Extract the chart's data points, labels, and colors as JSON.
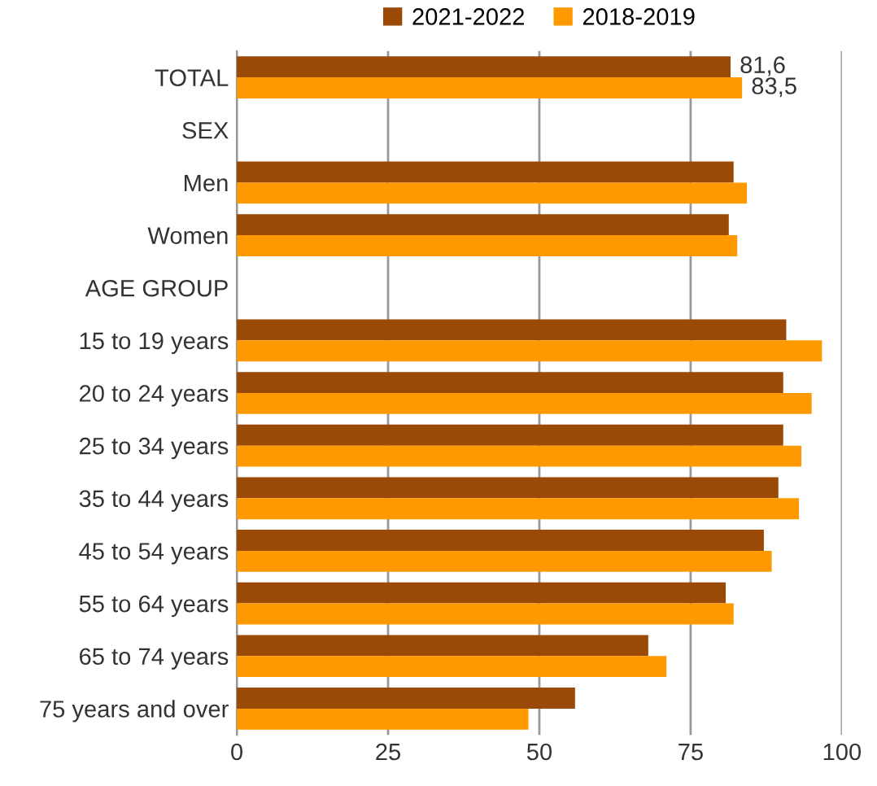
{
  "chart_data": {
    "type": "bar",
    "orientation": "horizontal",
    "categories": [
      "TOTAL",
      "SEX",
      "Men",
      "Women",
      "AGE GROUP",
      "15 to 19 years",
      "20 to 24 years",
      "25 to 34 years",
      "35 to 44 years",
      "45 to 54 years",
      "55 to 64 years",
      "65 to 74 years",
      "75 years and over"
    ],
    "series": [
      {
        "name": "2021-2022",
        "color": "#9a4a06",
        "values": [
          81.6,
          null,
          82.1,
          81.3,
          null,
          90.8,
          90.3,
          90.3,
          89.5,
          87.1,
          80.8,
          68.0,
          55.9
        ],
        "value_labels": [
          "81,6",
          null,
          null,
          null,
          null,
          null,
          null,
          null,
          null,
          null,
          null,
          null,
          null
        ]
      },
      {
        "name": "2018-2019",
        "color": "#ff9900",
        "values": [
          83.5,
          null,
          84.3,
          82.7,
          null,
          96.7,
          95.0,
          93.3,
          92.9,
          88.4,
          82.1,
          71.0,
          48.2
        ],
        "value_labels": [
          "83,5",
          null,
          null,
          null,
          null,
          null,
          null,
          null,
          null,
          null,
          null,
          null,
          null
        ]
      }
    ],
    "xlim": [
      0,
      100
    ],
    "xticks": [
      0,
      25,
      50,
      75,
      100
    ],
    "grid": "x",
    "legend": "top"
  }
}
